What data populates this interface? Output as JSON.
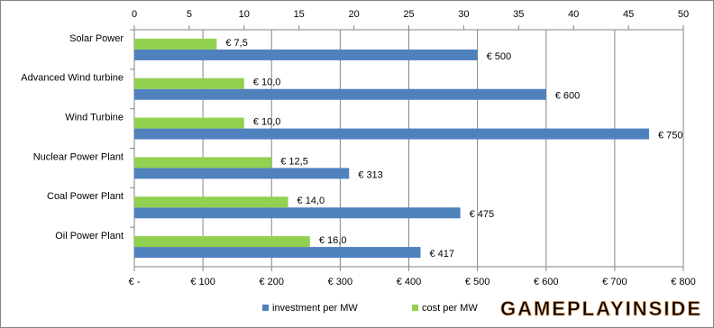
{
  "chart_data": {
    "type": "hbar",
    "categories": [
      "Solar Power",
      "Advanced Wind turbine",
      "Wind Turbine",
      "Nuclear Power Plant",
      "Coal Power Plant",
      "Oil Power Plant"
    ],
    "series": [
      {
        "name": "investment per MW",
        "color": "#4f81bd",
        "axis": "x",
        "values": [
          500,
          600,
          750,
          313,
          475,
          417
        ],
        "value_labels": [
          "€ 500",
          "€ 600",
          "€ 750",
          "€ 313",
          "€ 475",
          "€ 417"
        ]
      },
      {
        "name": "cost per MW",
        "color": "#92d050",
        "axis": "x2",
        "values": [
          7.5,
          10,
          10,
          12.5,
          14,
          16
        ],
        "value_labels": [
          "€ 7,5",
          "€ 10,0",
          "€ 10,0",
          "€ 12,5",
          "€ 14,0",
          "€ 16,0"
        ]
      }
    ],
    "xlim": [
      0,
      800
    ],
    "xticks": [
      {
        "value": 0,
        "label": "€ -"
      },
      {
        "value": 100,
        "label": "€ 100"
      },
      {
        "value": 200,
        "label": "€ 200"
      },
      {
        "value": 300,
        "label": "€ 300"
      },
      {
        "value": 400,
        "label": "€ 400"
      },
      {
        "value": 500,
        "label": "€ 500"
      },
      {
        "value": 600,
        "label": "€ 600"
      },
      {
        "value": 700,
        "label": "€ 700"
      },
      {
        "value": 800,
        "label": "€ 800"
      }
    ],
    "x2lim": [
      0,
      50
    ],
    "x2ticks": [
      0,
      5,
      10,
      15,
      20,
      25,
      30,
      35,
      40,
      45,
      50
    ],
    "grid": true,
    "legend": "bottom",
    "watermark": "GAMEPLAYINSIDE"
  }
}
